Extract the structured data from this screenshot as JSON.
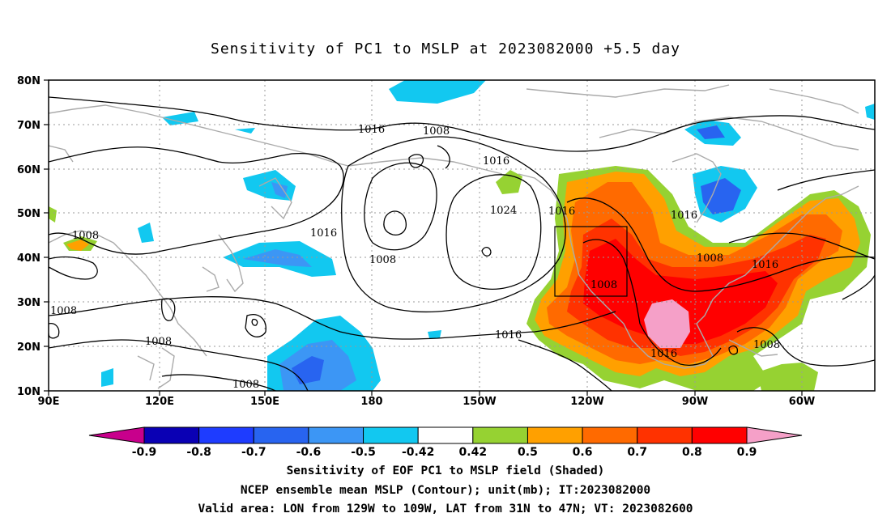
{
  "title": "Sensitivity of PC1 to MSLP at 2023082000 +5.5 day",
  "lat_labels": [
    "80N",
    "70N",
    "60N",
    "50N",
    "40N",
    "30N",
    "20N",
    "10N"
  ],
  "lon_labels": [
    "90E",
    "120E",
    "150E",
    "180",
    "150W",
    "120W",
    "90W",
    "60W"
  ],
  "contour_labels": {
    "c1016_north": "1016",
    "c1008_north": "1008",
    "c1016_mid": "1016",
    "c1024": "1024",
    "c1016_pac": "1016",
    "c1016_na": "1016",
    "c1008_left": "1008",
    "c1016_japan": "1016",
    "c1008_pac": "1008",
    "c1008_us": "1008",
    "c1016_atl": "1016",
    "c1008_w": "1008",
    "c1016_sub": "1016",
    "c1008_phil": "1008",
    "c1016_mex": "1016",
    "c1008_carib": "1008",
    "c1008_sw": "1008"
  },
  "colorbar": {
    "labels": [
      "-0.9",
      "-0.8",
      "-0.7",
      "-0.6",
      "-0.5",
      "-0.42",
      "0.42",
      "0.5",
      "0.6",
      "0.7",
      "0.8",
      "0.9"
    ],
    "colors": [
      "#c8008c",
      "#0a00b4",
      "#1e3cff",
      "#2864f0",
      "#3c96f5",
      "#12c8f0",
      "#ffffff",
      "#96d232",
      "#ffa000",
      "#ff6a00",
      "#ff3200",
      "#ff0000",
      "#f5a0c8"
    ]
  },
  "footer": {
    "line1": "Sensitivity of EOF PC1 to MSLP field (Shaded)",
    "line2": "NCEP ensemble mean MSLP (Contour); unit(mb); IT:2023082000",
    "line3": "Valid area: LON from 129W to 109W, LAT from 31N to 47N; VT: 2023082600"
  }
}
